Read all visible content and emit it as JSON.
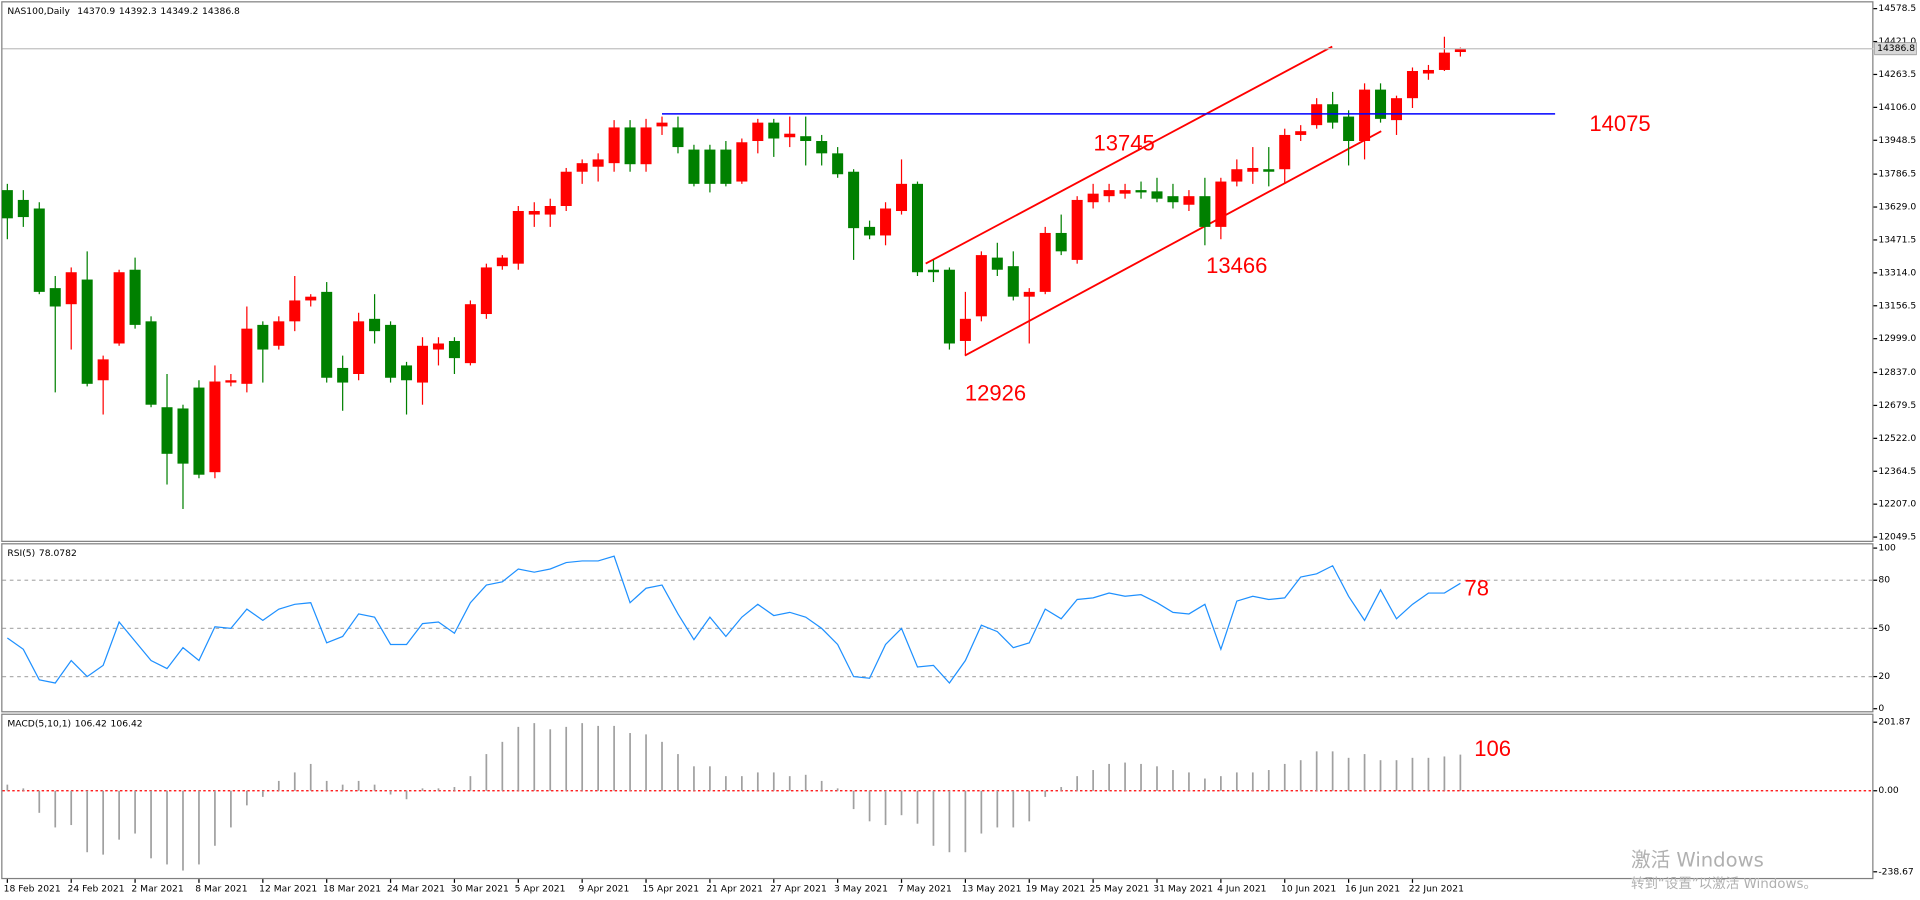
{
  "chart_data": [
    {
      "type": "candlestick",
      "title": "NAS100,Daily",
      "up_color": "#ff0000",
      "down_color": "#008000",
      "categories": [
        "18 Feb 2021",
        null,
        null,
        null,
        "24 Feb 2021",
        null,
        null,
        null,
        "2 Mar 2021",
        null,
        null,
        null,
        "8 Mar 2021",
        null,
        null,
        null,
        "12 Mar 2021",
        null,
        null,
        null,
        "18 Mar 2021",
        null,
        null,
        null,
        "24 Mar 2021",
        null,
        null,
        null,
        "30 Mar 2021",
        null,
        null,
        null,
        "5 Apr 2021",
        null,
        null,
        null,
        "9 Apr 2021",
        null,
        null,
        null,
        "15 Apr 2021",
        null,
        null,
        null,
        "21 Apr 2021",
        null,
        null,
        null,
        "27 Apr 2021",
        null,
        null,
        null,
        "3 May 2021",
        null,
        null,
        null,
        "7 May 2021",
        null,
        null,
        null,
        "13 May 2021",
        null,
        null,
        null,
        "19 May 2021",
        null,
        null,
        null,
        "25 May 2021",
        null,
        null,
        null,
        "31 May 2021",
        null,
        null,
        null,
        "4 Jun 2021",
        null,
        null,
        null,
        "10 Jun 2021",
        null,
        null,
        null,
        "16 Jun 2021",
        null,
        null,
        null,
        "22 Jun 2021",
        null,
        null,
        null
      ],
      "open": [
        13710,
        13663,
        13622,
        13241,
        13164,
        13282,
        12800,
        12976,
        13329,
        13082,
        12671,
        12665,
        12765,
        12360,
        12789,
        12783,
        13065,
        12965,
        13082,
        13182,
        13223,
        12859,
        12830,
        13094,
        13065,
        12871,
        12789,
        12947,
        12988,
        12882,
        13117,
        13346,
        13358,
        13593,
        13593,
        13634,
        13798,
        13822,
        13839,
        14010,
        13834,
        14015,
        14010,
        13904,
        13904,
        13904,
        13751,
        13945,
        14033,
        13963,
        13968,
        13945,
        13886,
        13798,
        13534,
        13493,
        13610,
        13740,
        13329,
        13329,
        12988,
        13106,
        13387,
        13346,
        13200,
        13223,
        13505,
        13376,
        13652,
        13681,
        13693,
        13710,
        13704,
        13681,
        13640,
        13681,
        13534,
        13751,
        13798,
        13810,
        13810,
        13974,
        14021,
        14121,
        14062,
        13945,
        14191,
        14045,
        14150,
        14268,
        14285,
        14370.9
      ],
      "high": [
        13740,
        13710,
        13652,
        13299,
        13340,
        13417,
        12918,
        13329,
        13387,
        13106,
        12830,
        12683,
        12800,
        12871,
        12830,
        13153,
        13082,
        13106,
        13299,
        13212,
        13270,
        12918,
        13123,
        13212,
        13082,
        12888,
        13006,
        13006,
        13006,
        13182,
        13358,
        13399,
        13634,
        13652,
        13669,
        13816,
        13857,
        13886,
        14045,
        14045,
        14051,
        14062,
        14062,
        13927,
        13927,
        13945,
        13957,
        14051,
        14051,
        14062,
        14062,
        13974,
        13916,
        13810,
        13564,
        13652,
        13857,
        13751,
        13376,
        13340,
        13223,
        13417,
        13458,
        13417,
        13241,
        13534,
        13593,
        13681,
        13740,
        13740,
        13740,
        13751,
        13769,
        13740,
        13710,
        13769,
        13769,
        13857,
        13916,
        13916,
        14004,
        14021,
        14150,
        14180,
        14092,
        14221,
        14221,
        14162,
        14297,
        14309,
        14444,
        14392.3
      ],
      "low": [
        13475,
        13534,
        13212,
        12742,
        12947,
        12771,
        12636,
        12965,
        13047,
        12671,
        12301,
        12184,
        12331,
        12331,
        12771,
        12742,
        12789,
        12947,
        13035,
        13153,
        12789,
        12654,
        12800,
        12976,
        12789,
        12636,
        12683,
        12871,
        12830,
        12871,
        13094,
        13329,
        13329,
        13534,
        13534,
        13610,
        13740,
        13751,
        13798,
        13798,
        13798,
        13974,
        13886,
        13728,
        13699,
        13728,
        13740,
        13886,
        13869,
        13916,
        13828,
        13828,
        13769,
        13376,
        13475,
        13446,
        13593,
        13299,
        13270,
        12947,
        12918,
        13082,
        13299,
        13182,
        12976,
        13212,
        13399,
        13358,
        13622,
        13652,
        13669,
        13669,
        13652,
        13622,
        13610,
        13446,
        13475,
        13728,
        13740,
        13728,
        13740,
        13945,
        14004,
        14004,
        13828,
        13857,
        14033,
        13974,
        14103,
        14238,
        14280,
        14349.2
      ],
      "close": [
        13575,
        13581,
        13223,
        13153,
        13317,
        12783,
        12900,
        13317,
        13065,
        12683,
        12448,
        12401,
        12348,
        12794,
        12800,
        13047,
        12947,
        13082,
        13182,
        13200,
        12812,
        12789,
        13082,
        13035,
        12812,
        12800,
        12965,
        12976,
        12906,
        13164,
        13340,
        13387,
        13610,
        13610,
        13634,
        13798,
        13839,
        13857,
        14010,
        13834,
        14010,
        14033,
        13916,
        13740,
        13740,
        13740,
        13939,
        14033,
        13957,
        13980,
        13945,
        13886,
        13786,
        13528,
        13493,
        13622,
        13740,
        13317,
        13317,
        12976,
        13094,
        13399,
        13329,
        13200,
        13223,
        13505,
        13417,
        13663,
        13693,
        13710,
        13710,
        13699,
        13669,
        13652,
        13681,
        13534,
        13751,
        13810,
        13816,
        13798,
        13974,
        13992,
        14121,
        14033,
        13945,
        14191,
        14051,
        14150,
        14280,
        14285,
        14368,
        14386.8
      ],
      "ylim": [
        12032,
        14614
      ],
      "yticks": [
        14578.5,
        {
          "value": 14421,
          "label": "14421.0"
        },
        14263.5,
        {
          "value": 14106,
          "label": "14106.0"
        },
        13948.5,
        13786.5,
        {
          "value": 13629,
          "label": "13629.0"
        },
        13471.5,
        {
          "value": 13314,
          "label": "13314.0"
        },
        13156.5,
        {
          "value": 12999,
          "label": "12999.0"
        },
        {
          "value": 12837,
          "label": "12837.0"
        },
        12679.5,
        {
          "value": 12522,
          "label": "12522.0"
        },
        12364.5,
        {
          "value": 12207,
          "label": "12207.0"
        },
        12049.5
      ],
      "hline": {
        "value": 14075,
        "color": "#0000ff"
      },
      "annotations": [
        12926,
        13745,
        13466,
        14075
      ]
    },
    {
      "type": "line",
      "title": "RSI(5)",
      "color": "#1e90ff",
      "values": [
        44,
        37,
        18,
        16,
        30,
        20,
        27,
        54,
        42,
        30,
        25,
        38,
        30,
        51,
        50,
        62,
        55,
        62,
        65,
        66,
        41,
        45,
        59,
        57,
        40,
        40,
        53,
        54,
        47,
        66,
        77,
        79,
        87,
        85,
        87,
        91,
        92,
        92,
        95,
        66,
        75,
        77,
        59,
        43,
        57,
        45,
        57,
        65,
        58,
        60,
        57,
        50,
        40,
        20,
        19,
        40,
        50,
        26,
        27,
        16,
        30,
        52,
        48,
        38,
        41,
        62,
        56,
        68,
        69,
        72,
        70,
        71,
        66,
        60,
        59,
        65,
        37,
        67,
        70,
        68,
        69,
        82,
        84,
        89,
        70,
        55,
        74,
        56,
        65,
        72,
        72,
        78.0782
      ],
      "ylim": [
        0,
        100
      ],
      "yticks": [
        100,
        80,
        50,
        20,
        0
      ],
      "grid": true,
      "annotations": [
        78
      ]
    },
    {
      "type": "bar",
      "title": "MACD(5,10,1)",
      "color": "#a0a0a0",
      "zero_line_color": "#ff0000",
      "values": [
        18,
        7,
        -65,
        -108,
        -101,
        -181,
        -188,
        -144,
        -126,
        -199,
        -217,
        -235,
        -217,
        -162,
        -108,
        -43,
        -18,
        29,
        54,
        79,
        29,
        18,
        29,
        18,
        -11,
        -25,
        7,
        7,
        11,
        43,
        108,
        144,
        188,
        199,
        181,
        188,
        199,
        191,
        191,
        170,
        166,
        144,
        108,
        72,
        72,
        43,
        43,
        54,
        54,
        43,
        47,
        29,
        7,
        -54,
        -90,
        -101,
        -72,
        -97,
        -162,
        -181,
        -181,
        -126,
        -108,
        -108,
        -90,
        -18,
        11,
        43,
        61,
        79,
        83,
        79,
        72,
        61,
        54,
        36,
        43,
        54,
        54,
        61,
        79,
        90,
        116,
        116,
        97,
        108,
        90,
        90,
        97,
        97,
        101,
        106.42
      ],
      "ylim": [
        -238.67,
        201.87
      ],
      "yticks": [
        201.87,
        {
          "value": 0,
          "label": "0.00"
        },
        -238.67
      ],
      "annotations": [
        106
      ]
    }
  ],
  "watermark": {
    "line1": "激活 Windows",
    "line2": "转到“设置”以激活 Windows。"
  }
}
